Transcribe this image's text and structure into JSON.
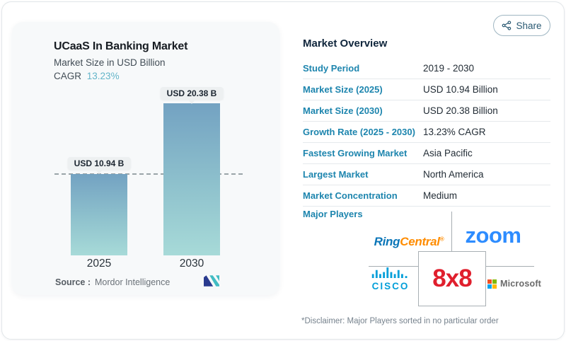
{
  "header": {
    "share_label": "Share"
  },
  "left_card": {
    "title": "UCaaS In Banking Market",
    "subtitle": "Market Size in USD Billion",
    "cagr_label": "CAGR",
    "cagr_value": "13.23%",
    "source_label": "Source :",
    "source_value": "Mordor Intelligence"
  },
  "chart_data": {
    "type": "bar",
    "title": "UCaaS In Banking Market",
    "subtitle": "Market Size in USD Billion",
    "unit": "USD Billion",
    "categories": [
      "2025",
      "2030"
    ],
    "values": [
      10.94,
      20.38
    ],
    "value_labels": [
      "USD 10.94 B",
      "USD 20.38 B"
    ],
    "cagr_percent": 13.23,
    "reference_line": {
      "value": 10.94,
      "style": "dashed"
    },
    "xlabel": "",
    "ylabel": "",
    "grid": "off",
    "bar_gradient": [
      "#73a2c2",
      "#a7dad8"
    ]
  },
  "overview": {
    "title": "Market Overview",
    "rows": [
      {
        "label": "Study Period",
        "value": "2019 - 2030"
      },
      {
        "label": "Market Size (2025)",
        "value": "USD 10.94 Billion"
      },
      {
        "label": "Market Size (2030)",
        "value": "USD 20.38 Billion"
      },
      {
        "label": "Growth Rate (2025 - 2030)",
        "value": "13.23% CAGR"
      },
      {
        "label": "Fastest Growing Market",
        "value": "Asia Pacific"
      },
      {
        "label": "Largest Market",
        "value": "North America"
      },
      {
        "label": "Market Concentration",
        "value": "Medium"
      }
    ],
    "major_players_label": "Major Players",
    "disclaimer": "*Disclaimer: Major Players sorted in no particular order"
  },
  "players": {
    "ringcentral_part1": "Ring",
    "ringcentral_part2": "Central",
    "ringcentral_reg": "®",
    "zoom": "zoom",
    "cisco": "cisco",
    "x8": "8x8",
    "microsoft": "Microsoft"
  },
  "colors": {
    "label_teal": "#1d85ae",
    "cagr_accent": "#64b5c9",
    "navy_text": "#10263c",
    "bar_top": "#73a2c2",
    "bar_bottom": "#a7dad8",
    "ringcentral_blue": "#0b76b8",
    "ringcentral_orange": "#ff8c00",
    "zoom_blue": "#2d8cff",
    "cisco_blue": "#049fd9",
    "x8_red": "#e01f2d",
    "microsoft_gray": "#6a6a6a"
  }
}
